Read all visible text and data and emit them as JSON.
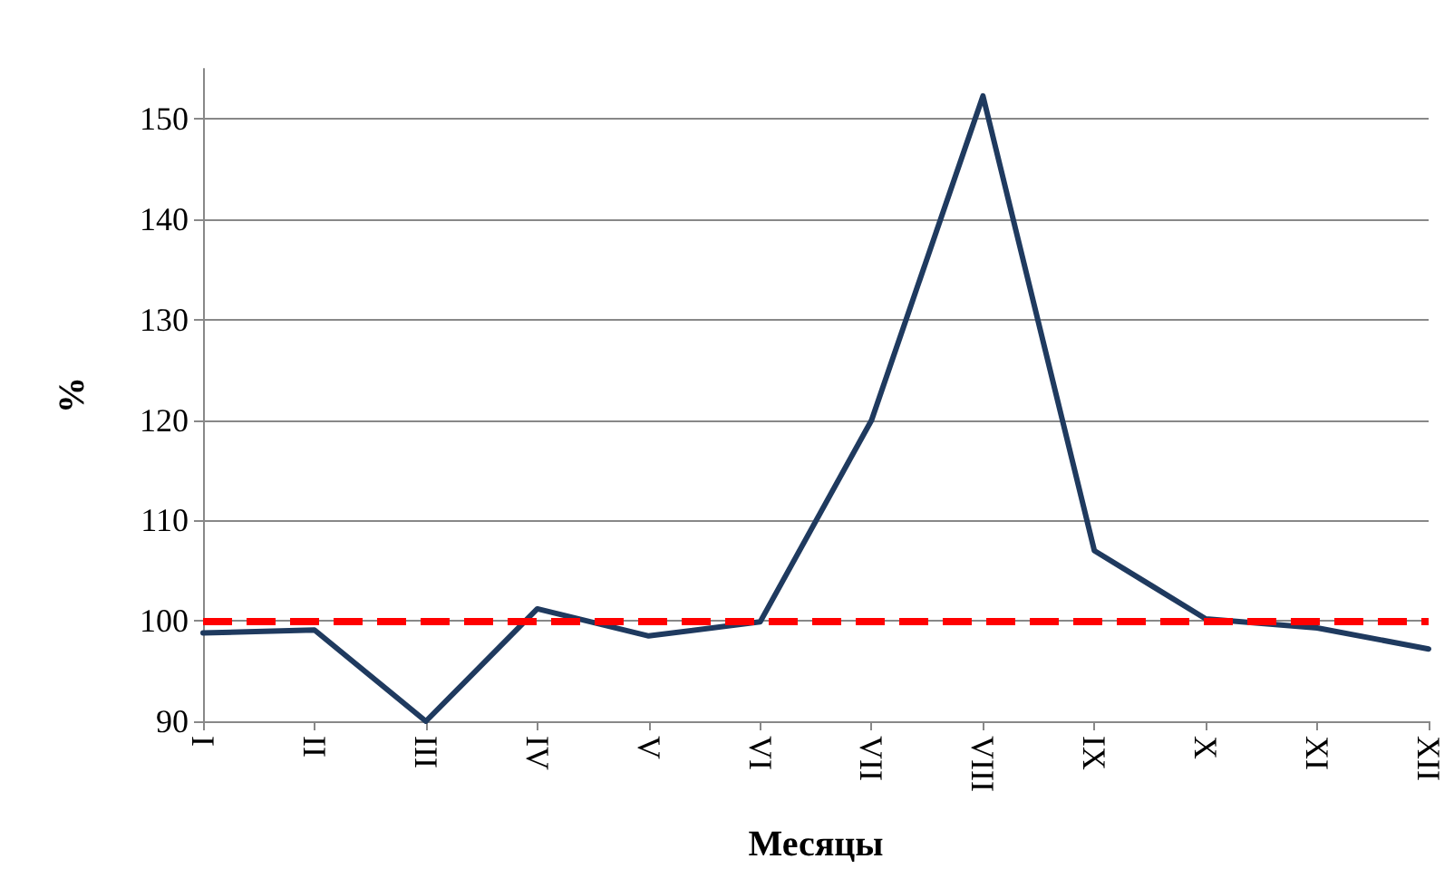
{
  "chart_data": {
    "type": "line",
    "xlabel": "Месяцы",
    "ylabel": "%",
    "categories": [
      "I",
      "II",
      "III",
      "IV",
      "V",
      "VI",
      "VII",
      "VIII",
      "IX",
      "X",
      "XI",
      "XII"
    ],
    "series": [
      {
        "color": "#1f3a5f",
        "values": [
          98.8,
          99.1,
          90,
          101.2,
          98.5,
          99.9,
          120,
          152.3,
          107,
          100.2,
          99.3,
          97.2
        ]
      }
    ],
    "ylim": [
      90,
      155
    ],
    "yticks": [
      90,
      100,
      110,
      120,
      130,
      140,
      150
    ],
    "grid": "y",
    "marker": "none",
    "line_style": "solid",
    "ref_lines": [
      {
        "axis": "y",
        "value": 100,
        "color": "#ff0000",
        "line_style": "dashed"
      }
    ]
  }
}
